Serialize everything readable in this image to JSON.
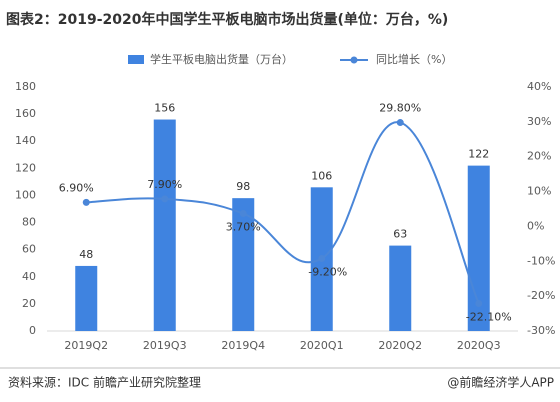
{
  "chart_data": {
    "type": "bar",
    "title": "图表2：2019-2020年中国学生平板电脑市场出货量(单位：万台，%)",
    "categories": [
      "2019Q2",
      "2019Q3",
      "2019Q4",
      "2020Q1",
      "2020Q2",
      "2020Q3"
    ],
    "series": [
      {
        "name": "学生平板电脑出货量（万台）",
        "type": "bar",
        "color": "#3f83e0",
        "values": [
          48,
          156,
          98,
          106,
          63,
          122
        ]
      },
      {
        "name": "同比增长（%）",
        "type": "line",
        "axis": "y2",
        "color": "#4a86d8",
        "values": [
          6.9,
          7.9,
          3.7,
          -9.2,
          29.8,
          -22.1
        ],
        "value_labels": [
          "6.90%",
          "7.90%",
          "3.70%",
          "-9.20%",
          "29.80%",
          "-22.10%"
        ]
      }
    ],
    "ylim": [
      0,
      180
    ],
    "yticks": [
      0,
      20,
      40,
      60,
      80,
      100,
      120,
      140,
      160,
      180
    ],
    "y2lim": [
      -30,
      40
    ],
    "y2ticks": [
      {
        "value": -30,
        "label": "-30%"
      },
      {
        "value": -20,
        "label": "-20%"
      },
      {
        "value": -10,
        "label": "-10%"
      },
      {
        "value": 0,
        "label": "0%"
      },
      {
        "value": 10,
        "label": "10%"
      },
      {
        "value": 20,
        "label": "20%"
      },
      {
        "value": 30,
        "label": "30%"
      },
      {
        "value": 40,
        "label": "40%"
      }
    ],
    "grid": false,
    "source": "资料来源：IDC 前瞻产业研究院整理",
    "credit": "@前瞻经济学人APP"
  }
}
